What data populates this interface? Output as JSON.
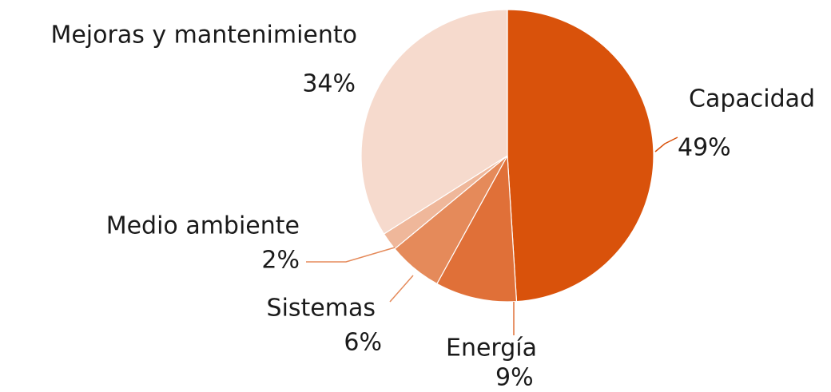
{
  "chart_data": {
    "type": "pie",
    "categories": [
      "Capacidad",
      "Energía",
      "Sistemas",
      "Medio ambiente",
      "Mejoras y mantenimiento"
    ],
    "values": [
      49,
      9,
      6,
      2,
      34
    ],
    "value_labels": [
      "49%",
      "9%",
      "6%",
      "2%",
      "34%"
    ],
    "colors": [
      "#d9520b",
      "#e07038",
      "#e58a5a",
      "#efb79a",
      "#f6dacd"
    ]
  }
}
